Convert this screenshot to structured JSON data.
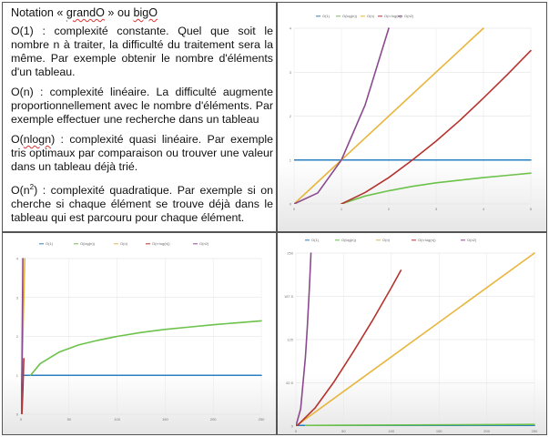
{
  "doc": {
    "title_prefix": "Notation « ",
    "title_grand": "grandO",
    "title_mid": " » ou ",
    "title_big": "bigO",
    "o1_label": "O(1)",
    "o1_text": " : complexité constante. Quel que soit le nombre n à traiter, la difficulté du traitement sera la même. Par exemple obtenir le nombre d'éléments d'un tableau.",
    "on_label": "O(n)",
    "on_text": " : complexité linéaire. La difficulté augmente proportionnellement avec le nombre d'éléments. Par exemple effectuer une recherche dans un tableau",
    "onlogn_pre": "O(",
    "onlogn_label": "nlogn",
    "onlogn_post": ")",
    "onlogn_text": " : complexité quasi linéaire. Par exemple tris optimaux par comparaison ou trouver une valeur dans un tableau déjà trié.",
    "on2_pre": "O(n",
    "on2_sup": "2",
    "on2_post": ")",
    "on2_text": " : complexité quadratique. Par exemple si on cherche si chaque élément se trouve déjà dans le tableau qui est parcouru pour chaque élément."
  },
  "chart_data": [
    {
      "type": "line",
      "legend": [
        "O(1)",
        "O(log(n))",
        "O(n)",
        "O(n·log(n))",
        "O(n2)"
      ],
      "xlim": [
        0,
        5
      ],
      "ylim": [
        0,
        4
      ],
      "xticks": [
        "0",
        "1",
        "2",
        "3",
        "4",
        "5"
      ],
      "yticks": [
        "0",
        "1",
        "2",
        "3",
        "4"
      ],
      "grid": true,
      "legend_position": "top",
      "series": [
        {
          "name": "O(1)",
          "color": "#2a7fc1",
          "x": [
            0,
            5
          ],
          "y": [
            1,
            1
          ]
        },
        {
          "name": "O(log(n))",
          "color": "#6cc24a",
          "x": [
            1,
            1.5,
            2,
            2.5,
            3,
            3.5,
            4,
            4.5,
            5
          ],
          "y": [
            0,
            0.18,
            0.3,
            0.4,
            0.48,
            0.54,
            0.6,
            0.65,
            0.7
          ]
        },
        {
          "name": "O(n)",
          "color": "#e8b53a",
          "x": [
            0,
            4
          ],
          "y": [
            0,
            4
          ]
        },
        {
          "name": "O(n·log(n))",
          "color": "#b5332e",
          "x": [
            1,
            1.5,
            2,
            2.5,
            3,
            3.5,
            4,
            4.5,
            5
          ],
          "y": [
            0,
            0.26,
            0.6,
            1.0,
            1.43,
            1.9,
            2.41,
            2.94,
            3.49
          ]
        },
        {
          "name": "O(n2)",
          "color": "#8b4a8f",
          "x": [
            0,
            0.5,
            1,
            1.5,
            2
          ],
          "y": [
            0,
            0.25,
            1,
            2.25,
            4
          ]
        }
      ]
    },
    {
      "type": "line",
      "legend": [
        "O(1)",
        "O(log(n))",
        "O(n)",
        "O(n·log(n))",
        "O(n2)"
      ],
      "xlim": [
        0,
        250
      ],
      "ylim": [
        0,
        4
      ],
      "xticks": [
        "0",
        "50",
        "100",
        "150",
        "200",
        "250"
      ],
      "yticks": [
        "0",
        "1",
        "2",
        "3",
        "4"
      ],
      "grid": true,
      "legend_position": "top",
      "series": [
        {
          "name": "O(1)",
          "color": "#2a7fc1",
          "x": [
            0,
            250
          ],
          "y": [
            1,
            1
          ]
        },
        {
          "name": "O(log(n))",
          "color": "#6cc24a",
          "x": [
            10,
            20,
            40,
            60,
            80,
            100,
            125,
            150,
            175,
            200,
            225,
            250
          ],
          "y": [
            1.0,
            1.3,
            1.6,
            1.78,
            1.9,
            2.0,
            2.1,
            2.18,
            2.24,
            2.3,
            2.35,
            2.4
          ]
        },
        {
          "name": "O(n)",
          "color": "#e8b53a",
          "x": [
            0,
            4
          ],
          "y": [
            0,
            4
          ]
        },
        {
          "name": "O(n·log(n))",
          "color": "#b5332e",
          "x": [
            1,
            2,
            3
          ],
          "y": [
            0,
            0.6,
            1.43
          ]
        },
        {
          "name": "O(n2)",
          "color": "#8b4a8f",
          "x": [
            0,
            1,
            2
          ],
          "y": [
            0,
            1,
            4
          ]
        }
      ]
    },
    {
      "type": "line",
      "legend": [
        "O(1)",
        "O(log(n))",
        "O(n)",
        "O(n·log(n))",
        "O(n2)"
      ],
      "xlim": [
        0,
        250
      ],
      "ylim": [
        0,
        250
      ],
      "xticks": [
        "0",
        "50",
        "100",
        "150",
        "200",
        "250"
      ],
      "yticks": [
        "0",
        "62.5",
        "125",
        "187.5",
        "250"
      ],
      "grid": true,
      "legend_position": "top",
      "series": [
        {
          "name": "O(1)",
          "color": "#2a7fc1",
          "x": [
            0,
            250
          ],
          "y": [
            1,
            1
          ]
        },
        {
          "name": "O(log(n))",
          "color": "#6cc24a",
          "x": [
            10,
            250
          ],
          "y": [
            1.0,
            2.4
          ]
        },
        {
          "name": "O(n)",
          "color": "#e8b53a",
          "x": [
            0,
            250
          ],
          "y": [
            0,
            250
          ]
        },
        {
          "name": "O(n·log(n))",
          "color": "#b5332e",
          "x": [
            1,
            20,
            40,
            60,
            80,
            100,
            110
          ],
          "y": [
            0,
            26,
            64,
            107,
            152,
            200,
            225
          ]
        },
        {
          "name": "O(n2)",
          "color": "#8b4a8f",
          "x": [
            0,
            5,
            10,
            12,
            14,
            15.8
          ],
          "y": [
            0,
            25,
            100,
            144,
            196,
            250
          ]
        }
      ]
    }
  ]
}
